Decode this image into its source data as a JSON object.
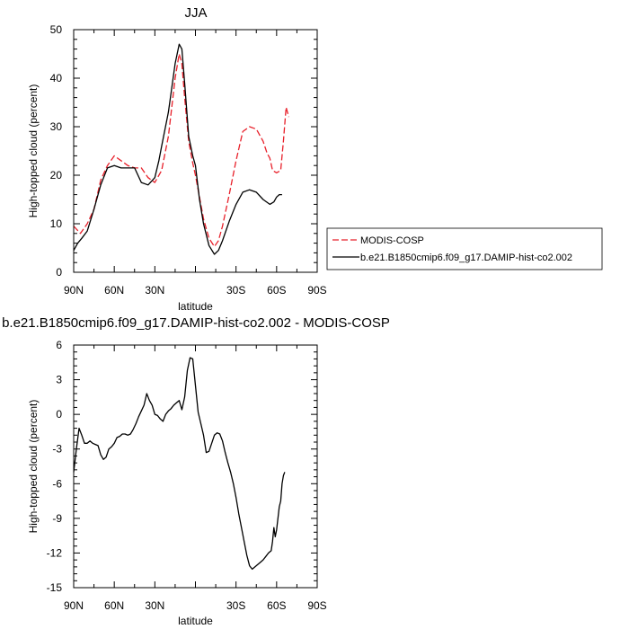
{
  "chart_data": [
    {
      "type": "line",
      "title": "JJA",
      "xlabel": "latitude",
      "ylabel": "High-topped cloud (percent)",
      "xlim": [
        90,
        -90
      ],
      "ylim": [
        0,
        50
      ],
      "xticks": [
        90,
        60,
        30,
        -30,
        -60,
        -90
      ],
      "xtick_labels": [
        "90N",
        "60N",
        "30N",
        "30S",
        "60S",
        "90S"
      ],
      "yticks": [
        0,
        10,
        20,
        30,
        40,
        50
      ],
      "ytick_labels": [
        "0",
        "10",
        "20",
        "30",
        "40",
        "50"
      ],
      "grid": false,
      "legend_position": "right",
      "series": [
        {
          "name": "MODIS-COSP",
          "color": "#e8202a",
          "dash": "dashed",
          "x": [
            90,
            85,
            80,
            75,
            70,
            65,
            60,
            55,
            50,
            45,
            40,
            35,
            30,
            25,
            20,
            15,
            12,
            10,
            8,
            5,
            2,
            0,
            -3,
            -6,
            -10,
            -14,
            -17,
            -20,
            -25,
            -30,
            -35,
            -40,
            -45,
            -50,
            -53,
            -55,
            -57,
            -60,
            -63,
            -65,
            -67,
            -68,
            -69
          ],
          "y": [
            9.5,
            8,
            10,
            13,
            19,
            22,
            24,
            23,
            22,
            21.5,
            21.5,
            19.5,
            18.5,
            21,
            28,
            40,
            45,
            43,
            36,
            27,
            22.5,
            20,
            15.5,
            11,
            7,
            5.3,
            6.5,
            9.5,
            16,
            23,
            29,
            30,
            29.5,
            27,
            24.5,
            23.5,
            21,
            20.5,
            21,
            27,
            34,
            33,
            32
          ]
        },
        {
          "name": "b.e21.B1850cmip6.f09_g17.DAMIP-hist-co2.002",
          "color": "#000000",
          "dash": "solid",
          "x": [
            90,
            87,
            84,
            80,
            75,
            70,
            65,
            60,
            55,
            50,
            45,
            40,
            35,
            30,
            27,
            25,
            20,
            15,
            12,
            10,
            8,
            5,
            2,
            0,
            -3,
            -6,
            -10,
            -14,
            -17,
            -20,
            -25,
            -30,
            -35,
            -40,
            -45,
            -50,
            -55,
            -58,
            -60,
            -62,
            -64
          ],
          "y": [
            4.5,
            6,
            7,
            8.5,
            13,
            18,
            21.5,
            22,
            21.5,
            21.5,
            21.5,
            18.5,
            18,
            19.5,
            23,
            26,
            33,
            43,
            47,
            46,
            39,
            28,
            24,
            22,
            15,
            10,
            5.5,
            3.7,
            4.5,
            6.5,
            10.5,
            14,
            16.5,
            17,
            16.5,
            15,
            14,
            14.5,
            15.5,
            16,
            16
          ]
        }
      ]
    },
    {
      "type": "line",
      "title": "b.e21.B1850cmip6.f09_g17.DAMIP-hist-co2.002 - MODIS-COSP",
      "xlabel": "latitude",
      "ylabel": "High-topped cloud (percent)",
      "xlim": [
        90,
        -90
      ],
      "ylim": [
        -15,
        6
      ],
      "xticks": [
        90,
        60,
        30,
        -30,
        -60,
        -90
      ],
      "xtick_labels": [
        "90N",
        "60N",
        "30N",
        "30S",
        "60S",
        "90S"
      ],
      "yticks": [
        -15,
        -12,
        -9,
        -6,
        -3,
        0,
        3,
        6
      ],
      "ytick_labels": [
        "-15",
        "-12",
        "-9",
        "-6",
        "-3",
        "0",
        "3",
        "6"
      ],
      "grid": false,
      "series": [
        {
          "color": "#000000",
          "dash": "solid",
          "x": [
            90,
            88,
            86,
            84,
            82,
            80,
            78,
            76,
            74,
            72,
            70,
            68,
            66,
            64,
            62,
            60,
            58,
            56,
            54,
            52,
            50,
            48,
            46,
            44,
            42,
            40,
            38,
            36,
            34,
            32,
            30,
            28,
            26,
            24,
            22,
            20,
            18,
            16,
            14,
            12,
            10,
            8,
            6,
            4,
            2,
            0,
            -2,
            -4,
            -6,
            -8,
            -10,
            -12,
            -14,
            -16,
            -18,
            -20,
            -22,
            -24,
            -26,
            -28,
            -30,
            -32,
            -34,
            -36,
            -38,
            -40,
            -42,
            -44,
            -46,
            -48,
            -50,
            -52,
            -54,
            -56,
            -57,
            -58,
            -59,
            -60,
            -61,
            -62,
            -63,
            -64,
            -65,
            -66
          ],
          "y": [
            -5,
            -3,
            -1.2,
            -1.8,
            -2.5,
            -2.5,
            -2.3,
            -2.5,
            -2.6,
            -2.7,
            -3.5,
            -3.9,
            -3.7,
            -3.0,
            -2.8,
            -2.5,
            -2.0,
            -1.9,
            -1.7,
            -1.7,
            -1.8,
            -1.7,
            -1.3,
            -0.8,
            -0.2,
            0.3,
            0.8,
            1.8,
            1.2,
            0.8,
            0.0,
            -0.1,
            -0.4,
            -0.6,
            0.0,
            0.3,
            0.5,
            0.8,
            1.0,
            1.2,
            0.4,
            1.5,
            3.8,
            4.9,
            4.8,
            2.5,
            0.2,
            -0.8,
            -1.8,
            -3.3,
            -3.2,
            -2.5,
            -1.8,
            -1.6,
            -1.7,
            -2.3,
            -3.3,
            -4.2,
            -5.0,
            -6.0,
            -7.2,
            -8.6,
            -9.8,
            -11.0,
            -12.2,
            -13.1,
            -13.4,
            -13.2,
            -13.0,
            -12.8,
            -12.6,
            -12.3,
            -12.0,
            -11.8,
            -11.0,
            -9.8,
            -10.6,
            -10.0,
            -9.0,
            -8.0,
            -7.5,
            -6.0,
            -5.3,
            -5.0
          ]
        }
      ]
    }
  ]
}
